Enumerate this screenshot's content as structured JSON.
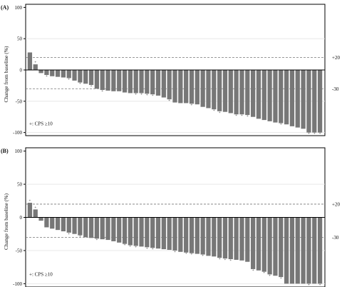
{
  "chart_data": [
    {
      "type": "bar",
      "panel_label": "(A)",
      "ylabel": "Change from baseline (%)",
      "ylim": [
        -105,
        105
      ],
      "yticks": [
        "100",
        "50",
        "0",
        "-50",
        "-100"
      ],
      "reference_lines": [
        {
          "value": 20,
          "label": "+20"
        },
        {
          "value": -30,
          "label": "-30"
        }
      ],
      "legend_text": "+: CPS ≥10",
      "legend_placement": "bottom-left",
      "grid": true,
      "values": [
        28,
        9,
        -5,
        -8,
        -10,
        -11,
        -12,
        -13,
        -17,
        -20,
        -22,
        -24,
        -30,
        -32,
        -33,
        -34,
        -34,
        -36,
        -37,
        -37,
        -37,
        -38,
        -39,
        -41,
        -44,
        -47,
        -52,
        -53,
        -53,
        -54,
        -55,
        -59,
        -61,
        -63,
        -66,
        -67,
        -69,
        -71,
        -71,
        -72,
        -75,
        -78,
        -80,
        -82,
        -84,
        -85,
        -87,
        -90,
        -92,
        -94,
        -100,
        -100,
        -100
      ],
      "cps_marked": [
        false,
        true,
        false,
        true,
        false,
        false,
        false,
        true,
        false,
        true,
        false,
        true,
        false,
        true,
        false,
        false,
        false,
        false,
        false,
        true,
        true,
        true,
        true,
        false,
        false,
        true,
        false,
        false,
        false,
        true,
        false,
        false,
        false,
        true,
        true,
        false,
        false,
        true,
        true,
        true,
        false,
        false,
        false,
        false,
        false,
        true,
        false,
        false,
        false,
        false,
        true,
        true,
        true
      ]
    },
    {
      "type": "bar",
      "panel_label": "(B)",
      "ylabel": "Change from baseline (%)",
      "ylim": [
        -105,
        105
      ],
      "yticks": [
        "100",
        "50",
        "0",
        "-50",
        "-100"
      ],
      "reference_lines": [
        {
          "value": 20,
          "label": "+20"
        },
        {
          "value": -30,
          "label": "-30"
        }
      ],
      "legend_text": "+: CPS ≥10",
      "legend_placement": "bottom-left",
      "grid": true,
      "values": [
        22,
        12,
        -5,
        -15,
        -17,
        -19,
        -21,
        -23,
        -25,
        -27,
        -30,
        -31,
        -32,
        -33,
        -34,
        -36,
        -38,
        -40,
        -42,
        -43,
        -44,
        -45,
        -46,
        -47,
        -48,
        -49,
        -50,
        -52,
        -53,
        -54,
        -55,
        -56,
        -58,
        -59,
        -61,
        -62,
        -63,
        -64,
        -65,
        -67,
        -78,
        -80,
        -82,
        -86,
        -88,
        -90,
        -100,
        -100,
        -100,
        -100,
        -100,
        -100,
        -100
      ],
      "cps_marked": [
        true,
        true,
        false,
        false,
        false,
        false,
        false,
        true,
        false,
        true,
        false,
        false,
        true,
        false,
        false,
        false,
        false,
        true,
        true,
        true,
        false,
        true,
        true,
        false,
        false,
        false,
        true,
        false,
        true,
        true,
        false,
        true,
        false,
        false,
        true,
        true,
        true,
        false,
        false,
        false,
        true,
        false,
        true,
        true,
        false,
        true,
        false,
        false,
        false,
        false,
        true,
        false,
        true
      ]
    }
  ]
}
